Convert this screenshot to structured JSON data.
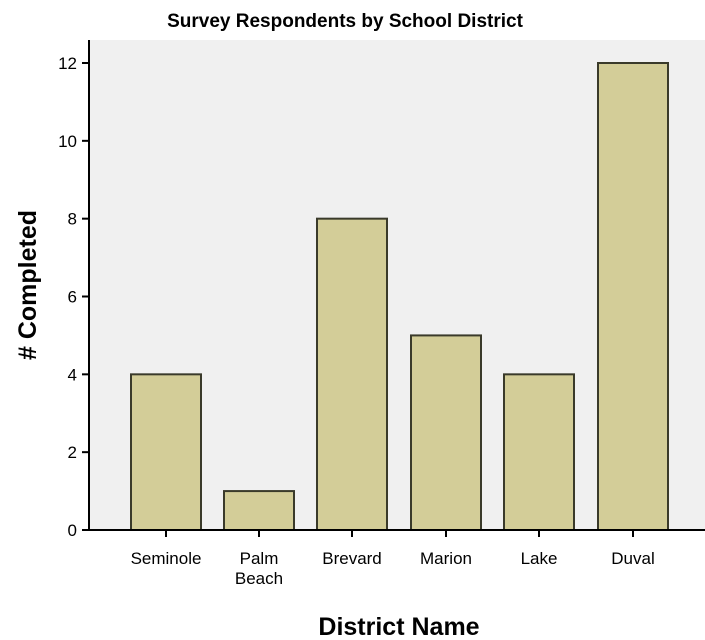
{
  "chart_data": {
    "type": "bar",
    "title": "Survey Respondents by School District",
    "xlabel": "District Name",
    "ylabel": "# Completed",
    "categories": [
      "Seminole",
      "Palm Beach",
      "Brevard",
      "Marion",
      "Lake",
      "Duval"
    ],
    "category_label_lines": [
      [
        "Seminole"
      ],
      [
        "Palm",
        "Beach"
      ],
      [
        "Brevard"
      ],
      [
        "Marion"
      ],
      [
        "Lake"
      ],
      [
        "Duval"
      ]
    ],
    "values": [
      4,
      1,
      8,
      5,
      4,
      12
    ],
    "ylim": [
      0,
      12.6
    ],
    "yticks": [
      0,
      2,
      4,
      6,
      8,
      10,
      12
    ],
    "grid": false,
    "legend": "none",
    "colors": {
      "bar_fill": "#d3cd98",
      "bar_stroke": "#3a3a2a",
      "plot_background": "#f0f0f0",
      "axis": "#000000"
    }
  }
}
